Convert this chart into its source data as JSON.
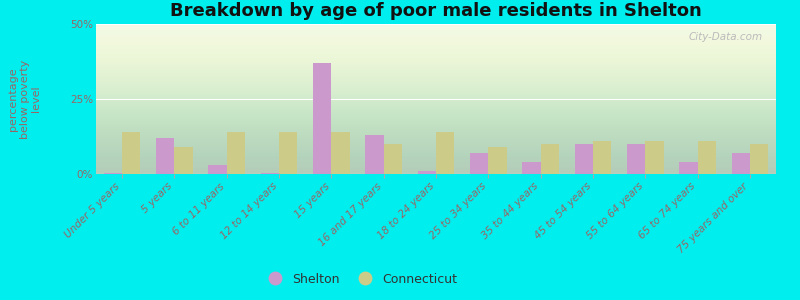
{
  "title": "Breakdown by age of poor male residents in Shelton",
  "ylabel": "percentage\nbelow poverty\nlevel",
  "categories": [
    "Under 5 years",
    "5 years",
    "6 to 11 years",
    "12 to 14 years",
    "15 years",
    "16 and 17 years",
    "18 to 24 years",
    "25 to 34 years",
    "35 to 44 years",
    "45 to 54 years",
    "55 to 64 years",
    "65 to 74 years",
    "75 years and over"
  ],
  "shelton": [
    0.5,
    12.0,
    3.0,
    0.5,
    37.0,
    13.0,
    1.0,
    7.0,
    4.0,
    10.0,
    10.0,
    4.0,
    7.0
  ],
  "connecticut": [
    14.0,
    9.0,
    14.0,
    14.0,
    14.0,
    10.0,
    14.0,
    9.0,
    10.0,
    11.0,
    11.0,
    11.0,
    10.0
  ],
  "shelton_color": "#cc99cc",
  "connecticut_color": "#cccc88",
  "background_top": "#d8eec8",
  "background_bottom": "#f0f8e8",
  "outer_background": "#00eeee",
  "ylim": [
    0,
    50
  ],
  "yticks": [
    0,
    25,
    50
  ],
  "ytick_labels": [
    "0%",
    "25%",
    "50%"
  ],
  "bar_width": 0.35,
  "title_fontsize": 13,
  "axis_label_fontsize": 8,
  "tick_fontsize": 7.5,
  "legend_fontsize": 9,
  "label_color": "#996666",
  "tick_color": "#996666",
  "watermark_color": "#bbbbbb"
}
